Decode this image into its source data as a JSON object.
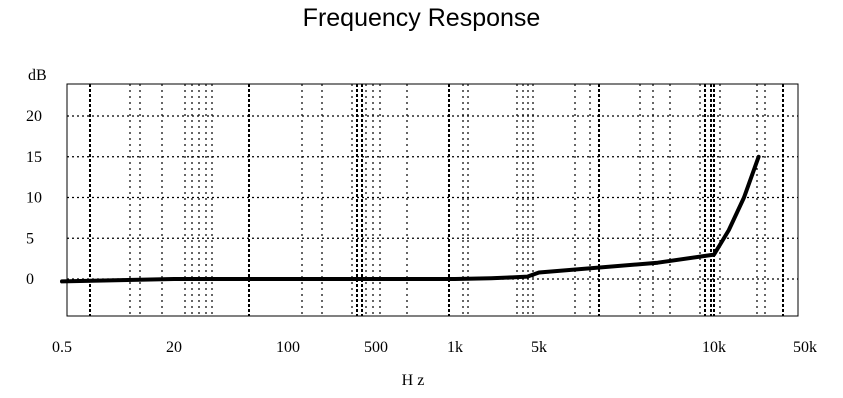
{
  "chart_data": {
    "type": "line",
    "title": "Frequency Response",
    "xlabel": "H z",
    "ylabel": "dB",
    "x_scale": "log",
    "ylim": [
      -5,
      24
    ],
    "grid": true,
    "x_ticks": [
      {
        "label": "0.5",
        "value": 0.5
      },
      {
        "label": "20",
        "value": 20
      },
      {
        "label": "100",
        "value": 100
      },
      {
        "label": "500",
        "value": 500
      },
      {
        "label": "1k",
        "value": 1000
      },
      {
        "label": "5k",
        "value": 5000
      },
      {
        "label": "10k",
        "value": 10000
      },
      {
        "label": "50k",
        "value": 50000
      }
    ],
    "y_ticks": [
      0,
      5,
      10,
      15,
      20
    ],
    "series": [
      {
        "color": "#000000",
        "points": [
          [
            0.5,
            -0.3
          ],
          [
            20,
            0.0
          ],
          [
            100,
            0.0
          ],
          [
            500,
            0.0
          ],
          [
            1000,
            0.0
          ],
          [
            2000,
            0.1
          ],
          [
            3000,
            0.2
          ],
          [
            4000,
            0.3
          ],
          [
            5000,
            0.8
          ],
          [
            8000,
            2.0
          ],
          [
            10000,
            3.0
          ],
          [
            13000,
            6.0
          ],
          [
            17000,
            10.0
          ],
          [
            22000,
            15.0
          ]
        ]
      }
    ]
  }
}
